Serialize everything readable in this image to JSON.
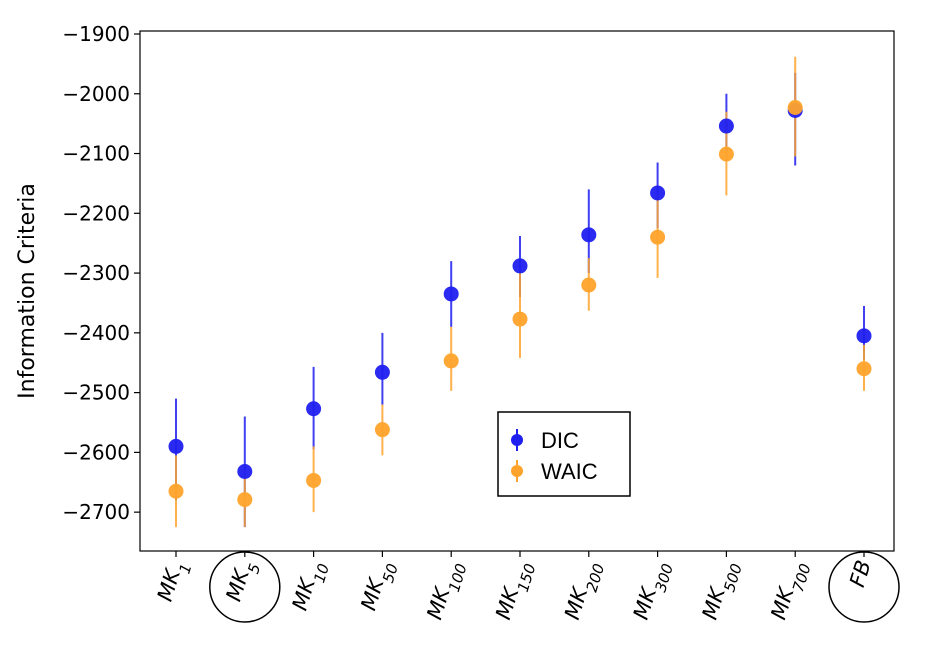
{
  "chart_data": {
    "type": "scatter",
    "ylabel": "Information Criteria",
    "xlabel": "",
    "title": "",
    "ylim": [
      -2765,
      -1895
    ],
    "yticks": [
      -1900,
      -2000,
      -2100,
      -2200,
      -2300,
      -2400,
      -2500,
      -2600,
      -2700
    ],
    "categories": [
      {
        "base": "MK",
        "sub": "1"
      },
      {
        "base": "MK",
        "sub": "5"
      },
      {
        "base": "MK",
        "sub": "10"
      },
      {
        "base": "MK",
        "sub": "50"
      },
      {
        "base": "MK",
        "sub": "100"
      },
      {
        "base": "MK",
        "sub": "150"
      },
      {
        "base": "MK",
        "sub": "200"
      },
      {
        "base": "MK",
        "sub": "300"
      },
      {
        "base": "MK",
        "sub": "500"
      },
      {
        "base": "MK",
        "sub": "700"
      },
      {
        "base": "FB",
        "sub": ""
      }
    ],
    "circled_categories": [
      1,
      10
    ],
    "series": [
      {
        "name": "DIC",
        "color": "#1f1fef",
        "values": [
          -2590,
          -2632,
          -2527,
          -2466,
          -2335,
          -2288,
          -2236,
          -2166,
          -2054,
          -2028,
          -2405
        ],
        "err_low": [
          -2680,
          -2725,
          -2595,
          -2520,
          -2390,
          -2340,
          -2300,
          -2225,
          -2100,
          -2120,
          -2445
        ],
        "err_high": [
          -2510,
          -2540,
          -2457,
          -2400,
          -2280,
          -2238,
          -2160,
          -2115,
          -2000,
          -1965,
          -2355
        ]
      },
      {
        "name": "WAIC",
        "color": "#ffa32b",
        "values": [
          -2665,
          -2679,
          -2647,
          -2562,
          -2447,
          -2377,
          -2320,
          -2240,
          -2101,
          -2023,
          -2460
        ],
        "err_low": [
          -2725,
          -2725,
          -2700,
          -2605,
          -2497,
          -2442,
          -2363,
          -2308,
          -2170,
          -2105,
          -2497
        ],
        "err_high": [
          -2605,
          -2630,
          -2590,
          -2520,
          -2390,
          -2300,
          -2275,
          -2170,
          -2030,
          -1938,
          -2420
        ]
      }
    ],
    "legend": {
      "position": "center-bottom",
      "entries": [
        "DIC",
        "WAIC"
      ]
    },
    "grid": false
  }
}
